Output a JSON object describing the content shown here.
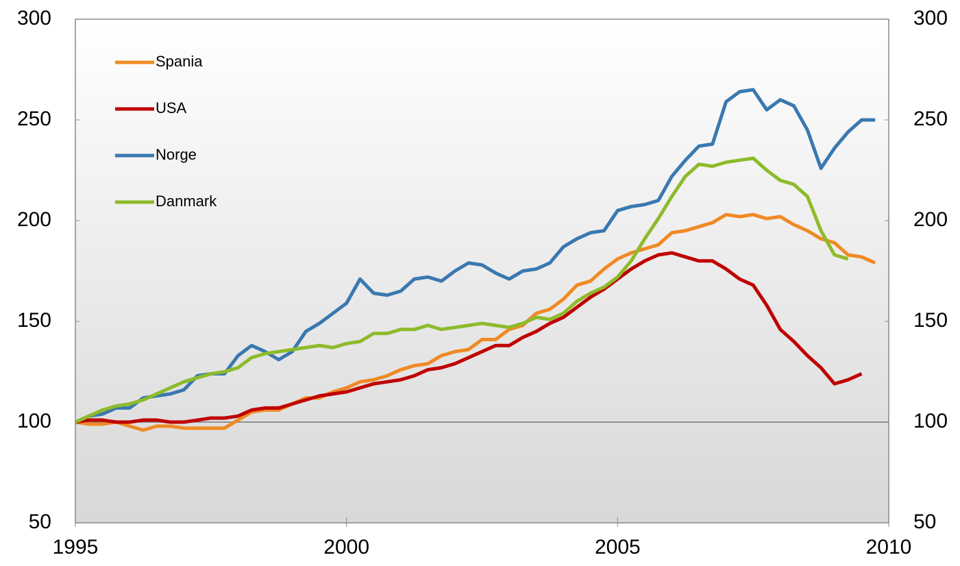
{
  "chart_data": {
    "type": "line",
    "x": [
      1995,
      1995.25,
      1995.5,
      1995.75,
      1996,
      1996.25,
      1996.5,
      1996.75,
      1997,
      1997.25,
      1997.5,
      1997.75,
      1998,
      1998.25,
      1998.5,
      1998.75,
      1999,
      1999.25,
      1999.5,
      1999.75,
      2000,
      2000.25,
      2000.5,
      2000.75,
      2001,
      2001.25,
      2001.5,
      2001.75,
      2002,
      2002.25,
      2002.5,
      2002.75,
      2003,
      2003.25,
      2003.5,
      2003.75,
      2004,
      2004.25,
      2004.5,
      2004.75,
      2005,
      2005.25,
      2005.5,
      2005.75,
      2006,
      2006.25,
      2006.5,
      2006.75,
      2007,
      2007.25,
      2007.5,
      2007.75,
      2008,
      2008.25,
      2008.5,
      2008.75,
      2009,
      2009.25,
      2009.5,
      2009.75
    ],
    "series": [
      {
        "name": "Spania",
        "color": "#f08a24",
        "values": [
          100,
          99,
          99,
          100,
          98,
          96,
          98,
          98,
          97,
          97,
          97,
          97,
          101,
          105,
          106,
          106,
          109,
          112,
          112,
          115,
          117,
          120,
          121,
          123,
          126,
          128,
          129,
          133,
          135,
          136,
          141,
          141,
          146,
          148,
          154,
          156,
          161,
          168,
          170,
          176,
          181,
          184,
          186,
          188,
          194,
          195,
          197,
          199,
          203,
          202,
          203,
          201,
          202,
          198,
          195,
          191,
          189,
          183,
          182,
          179
        ]
      },
      {
        "name": "USA",
        "color": "#c00000",
        "values": [
          100,
          101,
          101,
          100,
          100,
          101,
          101,
          100,
          100,
          101,
          102,
          102,
          103,
          106,
          107,
          107,
          109,
          111,
          113,
          114,
          115,
          117,
          119,
          120,
          121,
          123,
          126,
          127,
          129,
          132,
          135,
          138,
          138,
          142,
          145,
          149,
          152,
          157,
          162,
          166,
          171,
          176,
          180,
          183,
          184,
          182,
          180,
          180,
          176,
          171,
          168,
          158,
          146,
          140,
          133,
          127,
          119,
          121,
          124,
          null
        ]
      },
      {
        "name": "Norge",
        "color": "#3a78b0",
        "values": [
          100,
          103,
          104,
          107,
          107,
          112,
          113,
          114,
          116,
          123,
          124,
          124,
          133,
          138,
          135,
          131,
          135,
          145,
          149,
          154,
          159,
          171,
          164,
          163,
          165,
          171,
          172,
          170,
          175,
          179,
          178,
          174,
          171,
          175,
          176,
          179,
          187,
          191,
          194,
          195,
          205,
          207,
          208,
          210,
          222,
          230,
          237,
          238,
          259,
          264,
          265,
          255,
          260,
          257,
          245,
          226,
          236,
          244,
          250,
          250
        ]
      },
      {
        "name": "Danmark",
        "color": "#8dbb2a",
        "values": [
          100,
          103,
          106,
          108,
          109,
          111,
          114,
          117,
          120,
          122,
          124,
          125,
          127,
          132,
          134,
          135,
          136,
          137,
          138,
          137,
          139,
          140,
          144,
          144,
          146,
          146,
          148,
          146,
          147,
          148,
          149,
          148,
          147,
          149,
          152,
          151,
          154,
          160,
          164,
          167,
          172,
          180,
          191,
          201,
          212,
          222,
          228,
          227,
          229,
          230,
          231,
          225,
          220,
          218,
          212,
          195,
          183,
          181,
          null,
          null
        ]
      }
    ],
    "xlim": [
      1995,
      2010
    ],
    "xticks": [
      1995,
      2000,
      2005,
      2010
    ],
    "ylim": [
      50,
      300
    ],
    "yticks": [
      50,
      100,
      150,
      200,
      250,
      300
    ],
    "y2lim": [
      50,
      300
    ],
    "y2ticks": [
      50,
      100,
      150,
      200,
      250,
      300
    ],
    "reference_line": 100,
    "legend": "upper left"
  }
}
